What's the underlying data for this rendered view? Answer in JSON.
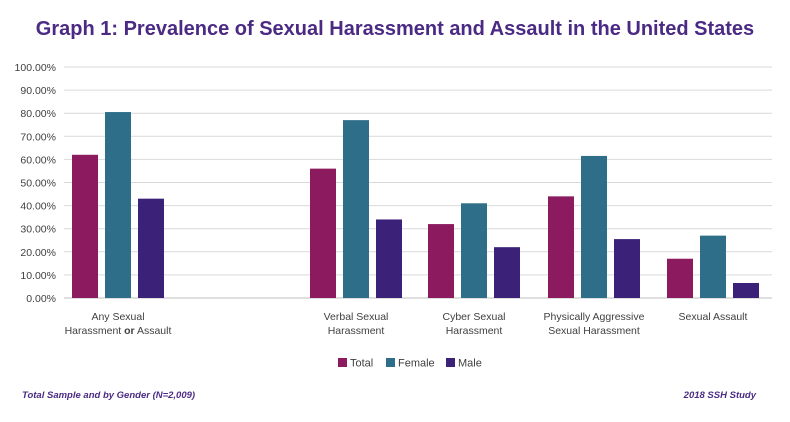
{
  "chart_data": {
    "type": "bar",
    "title": "Graph 1: Prevalence of Sexual Harassment and Assault in the United States",
    "categories": [
      [
        "Any Sexual",
        "Harassment or Assault"
      ],
      [
        "Verbal Sexual",
        "Harassment"
      ],
      [
        "Cyber Sexual",
        "Harassment"
      ],
      [
        "Physically Aggressive",
        "Sexual Harassment"
      ],
      [
        "Sexual Assault"
      ]
    ],
    "series": [
      {
        "name": "Total",
        "color": "#8b1a5e",
        "values": [
          62,
          56,
          32,
          44,
          17
        ]
      },
      {
        "name": "Female",
        "color": "#2e6e88",
        "values": [
          80.5,
          77,
          41,
          61.5,
          27
        ]
      },
      {
        "name": "Male",
        "color": "#3c2178",
        "values": [
          43,
          34,
          22,
          25.5,
          6.5
        ]
      }
    ],
    "ylim": [
      0,
      100
    ],
    "yticks": [
      "0.00%",
      "10.00%",
      "20.00%",
      "30.00%",
      "40.00%",
      "50.00%",
      "60.00%",
      "70.00%",
      "80.00%",
      "90.00%",
      "100.00%"
    ],
    "grid": true,
    "legend": "bottom-center"
  },
  "footer": {
    "left": "Total Sample and by Gender (N=2,009)",
    "right": "2018 SSH Study"
  }
}
